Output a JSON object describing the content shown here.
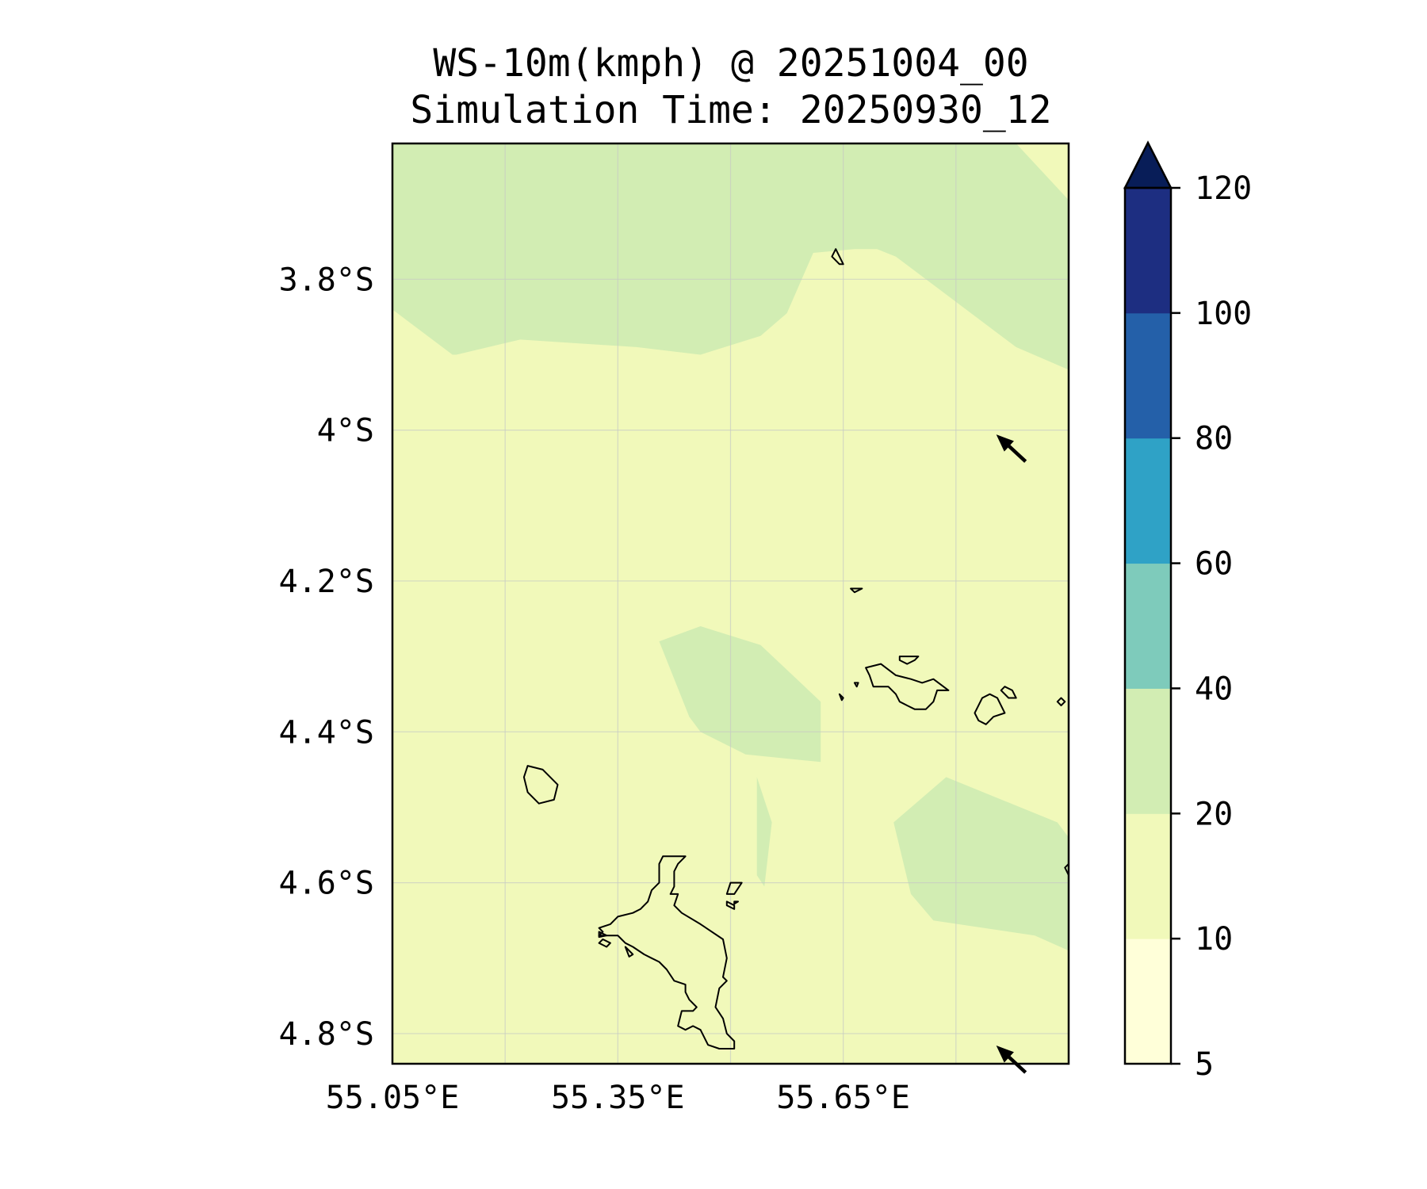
{
  "title": {
    "line1": "WS-10m(kmph) @ 20251004_00",
    "line2": "Simulation Time: 20250930_12"
  },
  "chart_data": {
    "type": "heatmap",
    "variable": "WS-10m(kmph)",
    "xlim": [
      55.05,
      55.95
    ],
    "ylim": [
      -4.84,
      -3.62
    ],
    "x_ticks": [
      {
        "value": 55.05,
        "label": "55.05°E"
      },
      {
        "value": 55.35,
        "label": "55.35°E"
      },
      {
        "value": 55.65,
        "label": "55.65°E"
      }
    ],
    "y_ticks": [
      {
        "value": -3.8,
        "label": "3.8°S"
      },
      {
        "value": -4.0,
        "label": "4°S"
      },
      {
        "value": -4.2,
        "label": "4.2°S"
      },
      {
        "value": -4.4,
        "label": "4.4°S"
      },
      {
        "value": -4.6,
        "label": "4.6°S"
      },
      {
        "value": -4.8,
        "label": "4.8°S"
      }
    ],
    "grid": true,
    "colorbar": {
      "position": "right",
      "extend": "max",
      "extend_color": "#081d58",
      "levels": [
        {
          "from": 5,
          "to": 10,
          "color": "#ffffd9"
        },
        {
          "from": 10,
          "to": 20,
          "color": "#f1f9ba"
        },
        {
          "from": 20,
          "to": 40,
          "color": "#d2edb3"
        },
        {
          "from": 40,
          "to": 60,
          "color": "#7ecbbb"
        },
        {
          "from": 60,
          "to": 80,
          "color": "#2fa2c6"
        },
        {
          "from": 80,
          "to": 100,
          "color": "#2460a9"
        },
        {
          "from": 100,
          "to": 120,
          "color": "#1d2e81"
        }
      ],
      "tick_labels": [
        "5",
        "10",
        "20",
        "40",
        "60",
        "80",
        "100",
        "120"
      ]
    },
    "background_level": "10-20",
    "regions_20_40": [
      {
        "name": "north-band",
        "polygon": [
          [
            55.05,
            -3.62
          ],
          [
            55.88,
            -3.62
          ],
          [
            55.95,
            -3.695
          ],
          [
            55.95,
            -3.92
          ],
          [
            55.88,
            -3.89
          ],
          [
            55.8,
            -3.83
          ],
          [
            55.72,
            -3.77
          ],
          [
            55.695,
            -3.76
          ],
          [
            55.665,
            -3.76
          ],
          [
            55.61,
            -3.765
          ],
          [
            55.575,
            -3.845
          ],
          [
            55.54,
            -3.875
          ],
          [
            55.46,
            -3.9
          ],
          [
            55.375,
            -3.89
          ],
          [
            55.22,
            -3.88
          ],
          [
            55.135,
            -3.9
          ],
          [
            55.13,
            -3.9
          ],
          [
            55.05,
            -3.84
          ]
        ]
      },
      {
        "name": "central-patch",
        "polygon": [
          [
            55.405,
            -4.28
          ],
          [
            55.46,
            -4.26
          ],
          [
            55.54,
            -4.285
          ],
          [
            55.62,
            -4.36
          ],
          [
            55.62,
            -4.44
          ],
          [
            55.52,
            -4.43
          ],
          [
            55.46,
            -4.4
          ],
          [
            55.445,
            -4.38
          ]
        ]
      },
      {
        "name": "sliver",
        "polygon": [
          [
            55.535,
            -4.46
          ],
          [
            55.555,
            -4.52
          ],
          [
            55.545,
            -4.605
          ],
          [
            55.535,
            -4.59
          ]
        ]
      },
      {
        "name": "southeast-patch",
        "polygon": [
          [
            55.717,
            -4.52
          ],
          [
            55.787,
            -4.46
          ],
          [
            55.935,
            -4.52
          ],
          [
            55.95,
            -4.54
          ],
          [
            55.95,
            -4.69
          ],
          [
            55.905,
            -4.67
          ],
          [
            55.77,
            -4.65
          ],
          [
            55.74,
            -4.615
          ]
        ]
      }
    ],
    "wind_vectors": [
      {
        "lon": 55.88,
        "lat": -4.03,
        "direction": "northwest"
      },
      {
        "lon": 55.88,
        "lat": -4.84,
        "direction": "northwest"
      }
    ],
    "coastlines": [
      {
        "name": "mahe-island",
        "polygon": [
          [
            55.44,
            -4.565
          ],
          [
            55.43,
            -4.575
          ],
          [
            55.425,
            -4.585
          ],
          [
            55.425,
            -4.605
          ],
          [
            55.42,
            -4.615
          ],
          [
            55.425,
            -4.615
          ],
          [
            55.43,
            -4.615
          ],
          [
            55.425,
            -4.63
          ],
          [
            55.435,
            -4.64
          ],
          [
            55.46,
            -4.655
          ],
          [
            55.49,
            -4.675
          ],
          [
            55.495,
            -4.7
          ],
          [
            55.49,
            -4.725
          ],
          [
            55.495,
            -4.73
          ],
          [
            55.485,
            -4.74
          ],
          [
            55.48,
            -4.765
          ],
          [
            55.49,
            -4.78
          ],
          [
            55.495,
            -4.8
          ],
          [
            55.505,
            -4.81
          ],
          [
            55.505,
            -4.82
          ],
          [
            55.485,
            -4.82
          ],
          [
            55.47,
            -4.815
          ],
          [
            55.46,
            -4.795
          ],
          [
            55.45,
            -4.79
          ],
          [
            55.44,
            -4.795
          ],
          [
            55.43,
            -4.79
          ],
          [
            55.435,
            -4.77
          ],
          [
            55.45,
            -4.77
          ],
          [
            55.455,
            -4.765
          ],
          [
            55.445,
            -4.755
          ],
          [
            55.44,
            -4.745
          ],
          [
            55.44,
            -4.735
          ],
          [
            55.425,
            -4.73
          ],
          [
            55.415,
            -4.715
          ],
          [
            55.405,
            -4.705
          ],
          [
            55.395,
            -4.7
          ],
          [
            55.385,
            -4.695
          ],
          [
            55.37,
            -4.685
          ],
          [
            55.36,
            -4.68
          ],
          [
            55.355,
            -4.675
          ],
          [
            55.35,
            -4.67
          ],
          [
            55.335,
            -4.67
          ],
          [
            55.325,
            -4.67
          ],
          [
            55.33,
            -4.665
          ],
          [
            55.325,
            -4.66
          ],
          [
            55.34,
            -4.655
          ],
          [
            55.35,
            -4.645
          ],
          [
            55.37,
            -4.64
          ],
          [
            55.38,
            -4.635
          ],
          [
            55.39,
            -4.625
          ],
          [
            55.395,
            -4.61
          ],
          [
            55.405,
            -4.6
          ],
          [
            55.405,
            -4.575
          ],
          [
            55.41,
            -4.565
          ],
          [
            55.425,
            -4.565
          ]
        ]
      },
      {
        "name": "silhouette-island",
        "polygon": [
          [
            55.23,
            -4.445
          ],
          [
            55.25,
            -4.45
          ],
          [
            55.27,
            -4.47
          ],
          [
            55.265,
            -4.49
          ],
          [
            55.245,
            -4.495
          ],
          [
            55.23,
            -4.48
          ],
          [
            55.225,
            -4.46
          ]
        ]
      },
      {
        "name": "praslin-island",
        "polygon": [
          [
            55.68,
            -4.315
          ],
          [
            55.7,
            -4.31
          ],
          [
            55.72,
            -4.325
          ],
          [
            55.74,
            -4.33
          ],
          [
            55.755,
            -4.335
          ],
          [
            55.77,
            -4.33
          ],
          [
            55.79,
            -4.345
          ],
          [
            55.775,
            -4.345
          ],
          [
            55.77,
            -4.36
          ],
          [
            55.76,
            -4.37
          ],
          [
            55.745,
            -4.37
          ],
          [
            55.735,
            -4.365
          ],
          [
            55.725,
            -4.36
          ],
          [
            55.72,
            -4.35
          ],
          [
            55.71,
            -4.34
          ],
          [
            55.69,
            -4.34
          ],
          [
            55.685,
            -4.325
          ]
        ]
      },
      {
        "name": "la-digue-island",
        "polygon": [
          [
            55.835,
            -4.355
          ],
          [
            55.845,
            -4.35
          ],
          [
            55.855,
            -4.355
          ],
          [
            55.865,
            -4.375
          ],
          [
            55.85,
            -4.38
          ],
          [
            55.84,
            -4.39
          ],
          [
            55.83,
            -4.385
          ],
          [
            55.825,
            -4.375
          ]
        ]
      },
      {
        "name": "curieuse-island",
        "polygon": [
          [
            55.725,
            -4.3
          ],
          [
            55.75,
            -4.3
          ],
          [
            55.745,
            -4.305
          ],
          [
            55.735,
            -4.31
          ],
          [
            55.725,
            -4.305
          ]
        ]
      },
      {
        "name": "felicite-island",
        "polygon": [
          [
            55.865,
            -4.34
          ],
          [
            55.875,
            -4.345
          ],
          [
            55.88,
            -4.355
          ],
          [
            55.87,
            -4.355
          ],
          [
            55.86,
            -4.345
          ]
        ]
      },
      {
        "name": "marianne-island",
        "polygon": [
          [
            55.94,
            -4.355
          ],
          [
            55.945,
            -4.36
          ],
          [
            55.94,
            -4.365
          ],
          [
            55.935,
            -4.36
          ]
        ]
      },
      {
        "name": "aride-island",
        "polygon": [
          [
            55.66,
            -4.21
          ],
          [
            55.675,
            -4.21
          ],
          [
            55.665,
            -4.215
          ]
        ]
      },
      {
        "name": "bird-island",
        "polygon": [
          [
            55.64,
            -3.76
          ],
          [
            55.65,
            -3.78
          ],
          [
            55.645,
            -3.78
          ],
          [
            55.635,
            -3.77
          ]
        ]
      },
      {
        "name": "cousin-island",
        "polygon": [
          [
            55.665,
            -4.335
          ],
          [
            55.67,
            -4.335
          ],
          [
            55.668,
            -4.34
          ]
        ]
      },
      {
        "name": "cousine-island",
        "polygon": [
          [
            55.645,
            -4.35
          ],
          [
            55.65,
            -4.355
          ],
          [
            55.648,
            -4.358
          ]
        ]
      },
      {
        "name": "ste-anne-island",
        "polygon": [
          [
            55.5,
            -4.6
          ],
          [
            55.515,
            -4.6
          ],
          [
            55.505,
            -4.615
          ],
          [
            55.495,
            -4.615
          ]
        ]
      },
      {
        "name": "cerf-island",
        "polygon": [
          [
            55.495,
            -4.625
          ],
          [
            55.505,
            -4.63
          ],
          [
            55.505,
            -4.635
          ],
          [
            55.495,
            -4.63
          ]
        ]
      },
      {
        "name": "round-island",
        "polygon": [
          [
            55.505,
            -4.625
          ],
          [
            55.51,
            -4.625
          ],
          [
            55.505,
            -4.628
          ]
        ]
      },
      {
        "name": "therese-island",
        "polygon": [
          [
            55.325,
            -4.665
          ],
          [
            55.335,
            -4.67
          ],
          [
            55.325,
            -4.672
          ]
        ]
      },
      {
        "name": "conception-island",
        "polygon": [
          [
            55.33,
            -4.675
          ],
          [
            55.34,
            -4.68
          ],
          [
            55.335,
            -4.685
          ],
          [
            55.325,
            -4.68
          ]
        ]
      },
      {
        "name": "thereseb-island",
        "polygon": [
          [
            55.36,
            -4.685
          ],
          [
            55.37,
            -4.695
          ],
          [
            55.365,
            -4.698
          ]
        ]
      },
      {
        "name": "frigate-edge-island",
        "polygon": [
          [
            55.945,
            -4.58
          ],
          [
            55.95,
            -4.575
          ],
          [
            55.95,
            -4.59
          ]
        ]
      }
    ]
  }
}
